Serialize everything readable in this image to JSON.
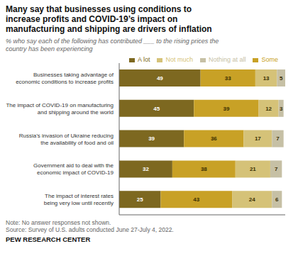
{
  "chart_data": {
    "type": "bar",
    "orientation": "horizontal",
    "stacked": true,
    "data_labels": true,
    "grid": false,
    "legend": "top",
    "tick_labels": "y",
    "title": "Many say that businesses using conditions to\nincrease profits and COVID-19’s impact on\nmanufacturing and shipping are drivers of inflation",
    "subtitle": "% who say each of the following has contributed ___ to the rising prices the\ncountry has been experiencing",
    "note": "Note: No answer responses not shown.\nSource: Survey of U.S. adults conducted June 27-July 4, 2022.",
    "footer": "PEW RESEARCH CENTER",
    "categories": [
      "Businesses taking advantage of\neconomic conditions to increase profits",
      "The impact of COVID-19 on manufacturing\nand shipping around the world",
      "Russia’s invasion of Ukraine reducing\nthe availability of food and oil",
      "Government aid to deal with the\neconomic impact of COVID-19",
      "The impact of interest rates\nbeing very low until recently"
    ],
    "xlim": [
      0,
      100
    ],
    "series": [
      {
        "name": "A lot",
        "color": "#7d6820",
        "values": [
          49,
          45,
          39,
          32,
          25
        ]
      },
      {
        "name": "Some",
        "color": "#c8a126",
        "values": [
          33,
          39,
          36,
          38,
          43
        ]
      },
      {
        "name": "Not much",
        "color": "#d5c278",
        "values": [
          13,
          12,
          17,
          21,
          24
        ]
      },
      {
        "name": "Nothing at all",
        "color": "#c6c0a5",
        "values": [
          5,
          3,
          7,
          7,
          6
        ]
      }
    ]
  }
}
